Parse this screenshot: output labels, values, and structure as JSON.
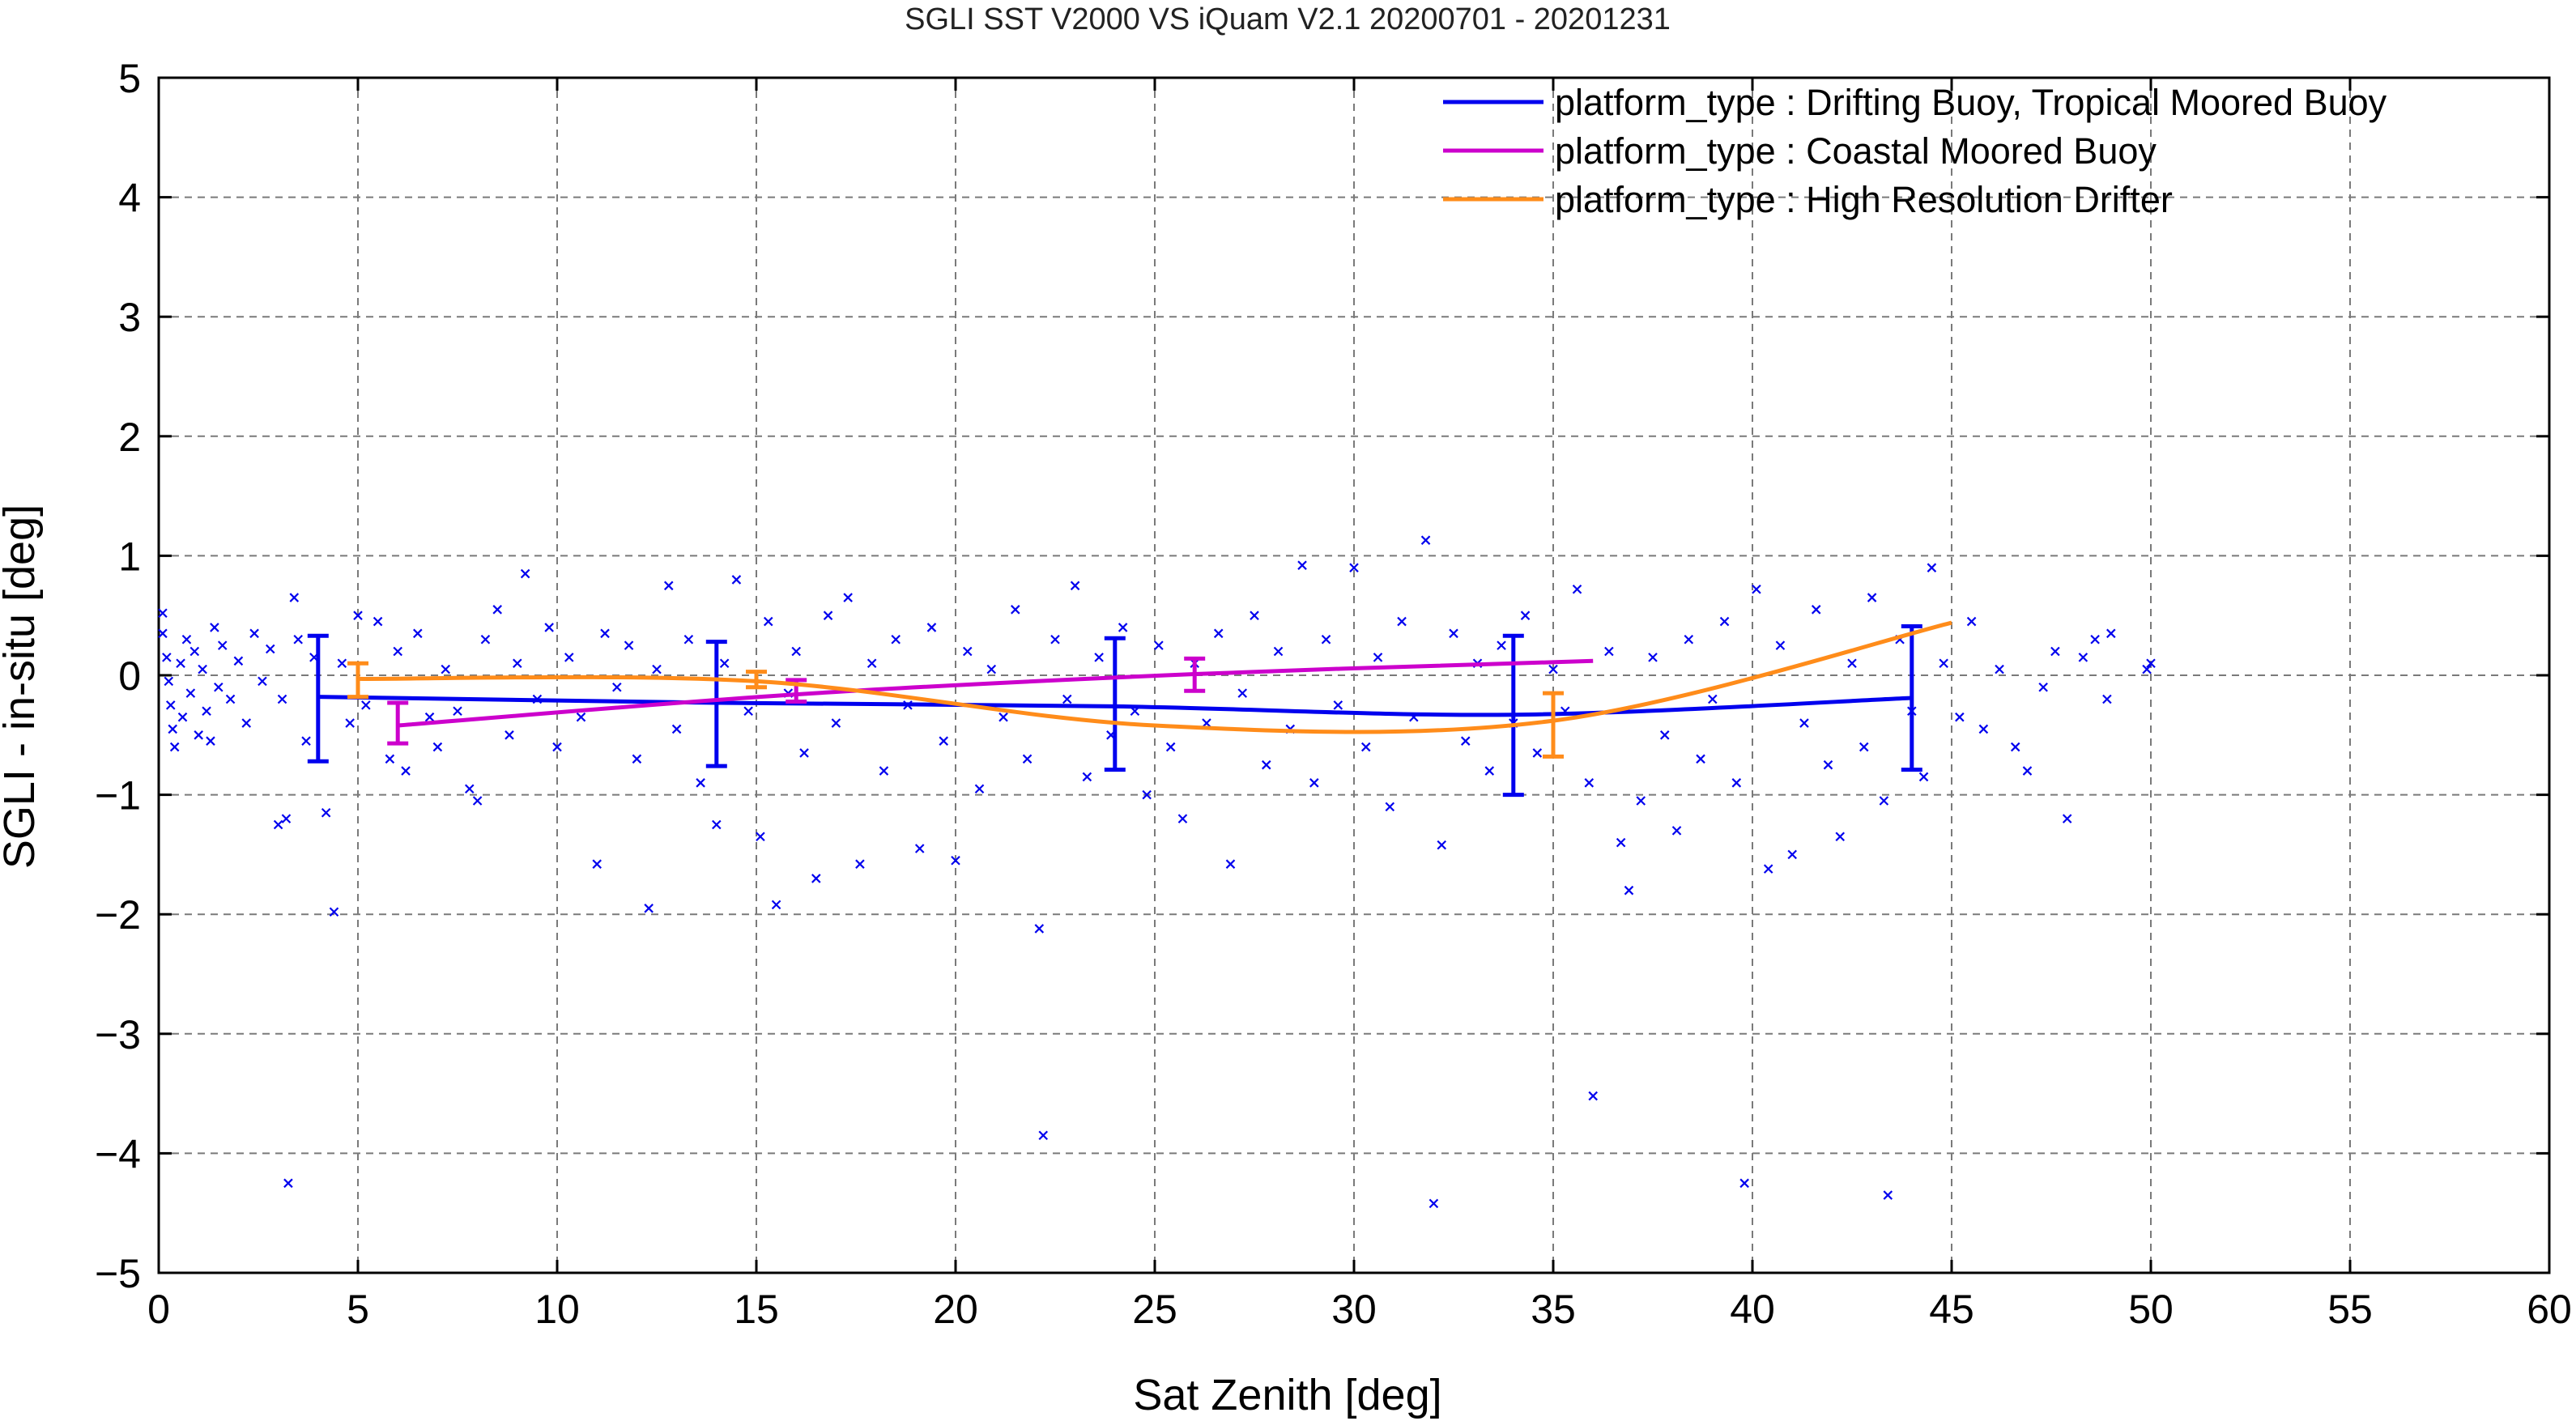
{
  "chart_data": {
    "type": "scatter",
    "title": "SGLI SST V2000 VS iQuam V2.1 20200701 - 20201231",
    "xlabel": "Sat Zenith [deg]",
    "ylabel": "SGLI - in-situ [deg]",
    "xlim": [
      0,
      60
    ],
    "ylim": [
      -5,
      5
    ],
    "x_ticks": [
      0,
      5,
      10,
      15,
      20,
      25,
      30,
      35,
      40,
      45,
      50,
      55,
      60
    ],
    "y_ticks": [
      -5,
      -4,
      -3,
      -2,
      -1,
      0,
      1,
      2,
      3,
      4,
      5
    ],
    "x_tick_labels": [
      "0",
      "5",
      "10",
      "15",
      "20",
      "25",
      "30",
      "35",
      "40",
      "45",
      "50",
      "55",
      "60"
    ],
    "y_tick_labels": [
      "−5",
      "−4",
      "−3",
      "−2",
      "−1",
      "0",
      "1",
      "2",
      "3",
      "4",
      "5"
    ],
    "grid": true,
    "grid_style": "dashed",
    "legend_position": "top-right",
    "series": [
      {
        "name": "platform_type : Drifting Buoy, Tropical Moored Buoy",
        "color": "#0000ee",
        "kind": "mean_line_with_errorbars",
        "x": [
          4,
          14,
          24,
          34,
          44
        ],
        "y": [
          -0.18,
          -0.23,
          -0.26,
          -0.33,
          -0.19
        ],
        "err_low": [
          -0.72,
          -0.76,
          -0.79,
          -1.0,
          -0.79
        ],
        "err_high": [
          0.33,
          0.28,
          0.31,
          0.33,
          0.41
        ]
      },
      {
        "name": "platform_type : Coastal Moored Buoy",
        "color": "#cc00cc",
        "kind": "mean_line_with_errorbars",
        "x": [
          6,
          16,
          26,
          36
        ],
        "y": [
          -0.42,
          -0.16,
          0.01,
          0.12
        ],
        "err_low": [
          -0.57,
          -0.22,
          -0.13,
          0.12
        ],
        "err_high": [
          -0.23,
          -0.04,
          0.14,
          0.12
        ]
      },
      {
        "name": "platform_type : High Resolution Drifter",
        "color": "#ff8c1a",
        "kind": "mean_line_with_errorbars",
        "x": [
          5,
          15,
          25,
          35,
          45
        ],
        "y": [
          -0.03,
          -0.05,
          -0.42,
          -0.38,
          0.44
        ],
        "err_low": [
          -0.18,
          -0.1,
          -0.42,
          -0.68,
          0.44
        ],
        "err_high": [
          0.1,
          0.03,
          -0.42,
          -0.15,
          0.44
        ]
      }
    ],
    "scatter_points": [
      {
        "x": 0.1,
        "y": 0.52
      },
      {
        "x": 0.1,
        "y": 0.35
      },
      {
        "x": 0.2,
        "y": 0.15
      },
      {
        "x": 0.25,
        "y": -0.05
      },
      {
        "x": 0.3,
        "y": -0.25
      },
      {
        "x": 0.35,
        "y": -0.45
      },
      {
        "x": 0.4,
        "y": -0.6
      },
      {
        "x": 0.55,
        "y": 0.1
      },
      {
        "x": 0.6,
        "y": -0.35
      },
      {
        "x": 0.7,
        "y": 0.3
      },
      {
        "x": 0.8,
        "y": -0.15
      },
      {
        "x": 0.9,
        "y": 0.2
      },
      {
        "x": 1.0,
        "y": -0.5
      },
      {
        "x": 1.1,
        "y": 0.05
      },
      {
        "x": 1.2,
        "y": -0.3
      },
      {
        "x": 1.3,
        "y": -0.55
      },
      {
        "x": 1.4,
        "y": 0.4
      },
      {
        "x": 1.5,
        "y": -0.1
      },
      {
        "x": 1.6,
        "y": 0.25
      },
      {
        "x": 1.8,
        "y": -0.2
      },
      {
        "x": 2.0,
        "y": 0.12
      },
      {
        "x": 2.2,
        "y": -0.4
      },
      {
        "x": 2.4,
        "y": 0.35
      },
      {
        "x": 2.6,
        "y": -0.05
      },
      {
        "x": 2.8,
        "y": 0.22
      },
      {
        "x": 3.0,
        "y": -1.25
      },
      {
        "x": 3.1,
        "y": -0.2
      },
      {
        "x": 3.2,
        "y": -1.2
      },
      {
        "x": 3.25,
        "y": -4.25
      },
      {
        "x": 3.4,
        "y": 0.65
      },
      {
        "x": 3.5,
        "y": 0.3
      },
      {
        "x": 3.7,
        "y": -0.55
      },
      {
        "x": 3.9,
        "y": 0.15
      },
      {
        "x": 4.2,
        "y": -1.15
      },
      {
        "x": 4.4,
        "y": -1.98
      },
      {
        "x": 4.6,
        "y": 0.1
      },
      {
        "x": 4.8,
        "y": -0.4
      },
      {
        "x": 5.0,
        "y": 0.5
      },
      {
        "x": 5.2,
        "y": -0.25
      },
      {
        "x": 5.5,
        "y": 0.45
      },
      {
        "x": 5.8,
        "y": -0.7
      },
      {
        "x": 6.0,
        "y": 0.2
      },
      {
        "x": 6.2,
        "y": -0.8
      },
      {
        "x": 6.5,
        "y": 0.35
      },
      {
        "x": 6.8,
        "y": -0.35
      },
      {
        "x": 7.0,
        "y": -0.6
      },
      {
        "x": 7.2,
        "y": 0.05
      },
      {
        "x": 7.5,
        "y": -0.3
      },
      {
        "x": 7.8,
        "y": -0.95
      },
      {
        "x": 8.0,
        "y": -1.05
      },
      {
        "x": 8.2,
        "y": 0.3
      },
      {
        "x": 8.5,
        "y": 0.55
      },
      {
        "x": 8.8,
        "y": -0.5
      },
      {
        "x": 9.0,
        "y": 0.1
      },
      {
        "x": 9.2,
        "y": 0.85
      },
      {
        "x": 9.5,
        "y": -0.2
      },
      {
        "x": 9.8,
        "y": 0.4
      },
      {
        "x": 10.0,
        "y": -0.6
      },
      {
        "x": 10.3,
        "y": 0.15
      },
      {
        "x": 10.6,
        "y": -0.35
      },
      {
        "x": 11.0,
        "y": -1.58
      },
      {
        "x": 11.2,
        "y": 0.35
      },
      {
        "x": 11.5,
        "y": -0.1
      },
      {
        "x": 11.8,
        "y": 0.25
      },
      {
        "x": 12.0,
        "y": -0.7
      },
      {
        "x": 12.3,
        "y": -1.95
      },
      {
        "x": 12.5,
        "y": 0.05
      },
      {
        "x": 12.8,
        "y": 0.75
      },
      {
        "x": 13.0,
        "y": -0.45
      },
      {
        "x": 13.3,
        "y": 0.3
      },
      {
        "x": 13.6,
        "y": -0.9
      },
      {
        "x": 14.0,
        "y": -1.25
      },
      {
        "x": 14.2,
        "y": 0.1
      },
      {
        "x": 14.5,
        "y": 0.8
      },
      {
        "x": 14.8,
        "y": -0.3
      },
      {
        "x": 15.1,
        "y": -1.35
      },
      {
        "x": 15.3,
        "y": 0.45
      },
      {
        "x": 15.5,
        "y": -1.92
      },
      {
        "x": 15.8,
        "y": -0.15
      },
      {
        "x": 16.0,
        "y": 0.2
      },
      {
        "x": 16.2,
        "y": -0.65
      },
      {
        "x": 16.5,
        "y": -1.7
      },
      {
        "x": 16.8,
        "y": 0.5
      },
      {
        "x": 17.0,
        "y": -0.4
      },
      {
        "x": 17.3,
        "y": 0.65
      },
      {
        "x": 17.6,
        "y": -1.58
      },
      {
        "x": 17.9,
        "y": 0.1
      },
      {
        "x": 18.2,
        "y": -0.8
      },
      {
        "x": 18.5,
        "y": 0.3
      },
      {
        "x": 18.8,
        "y": -0.25
      },
      {
        "x": 19.1,
        "y": -1.45
      },
      {
        "x": 19.4,
        "y": 0.4
      },
      {
        "x": 19.7,
        "y": -0.55
      },
      {
        "x": 20.0,
        "y": -1.55
      },
      {
        "x": 20.3,
        "y": 0.2
      },
      {
        "x": 20.6,
        "y": -0.95
      },
      {
        "x": 20.9,
        "y": 0.05
      },
      {
        "x": 21.2,
        "y": -0.35
      },
      {
        "x": 21.5,
        "y": 0.55
      },
      {
        "x": 21.8,
        "y": -0.7
      },
      {
        "x": 22.1,
        "y": -2.12
      },
      {
        "x": 22.2,
        "y": -3.85
      },
      {
        "x": 22.5,
        "y": 0.3
      },
      {
        "x": 22.8,
        "y": -0.2
      },
      {
        "x": 23.0,
        "y": 0.75
      },
      {
        "x": 23.3,
        "y": -0.85
      },
      {
        "x": 23.6,
        "y": 0.15
      },
      {
        "x": 23.9,
        "y": -0.5
      },
      {
        "x": 24.2,
        "y": 0.4
      },
      {
        "x": 24.5,
        "y": -0.3
      },
      {
        "x": 24.8,
        "y": -1.0
      },
      {
        "x": 25.1,
        "y": 0.25
      },
      {
        "x": 25.4,
        "y": -0.6
      },
      {
        "x": 25.7,
        "y": -1.2
      },
      {
        "x": 26.0,
        "y": 0.1
      },
      {
        "x": 26.3,
        "y": -0.4
      },
      {
        "x": 26.6,
        "y": 0.35
      },
      {
        "x": 26.9,
        "y": -1.58
      },
      {
        "x": 27.2,
        "y": -0.15
      },
      {
        "x": 27.5,
        "y": 0.5
      },
      {
        "x": 27.8,
        "y": -0.75
      },
      {
        "x": 28.1,
        "y": 0.2
      },
      {
        "x": 28.4,
        "y": -0.45
      },
      {
        "x": 28.7,
        "y": 0.92
      },
      {
        "x": 29.0,
        "y": -0.9
      },
      {
        "x": 29.3,
        "y": 0.3
      },
      {
        "x": 29.6,
        "y": -0.25
      },
      {
        "x": 30.0,
        "y": 0.9
      },
      {
        "x": 30.3,
        "y": -0.6
      },
      {
        "x": 30.6,
        "y": 0.15
      },
      {
        "x": 30.9,
        "y": -1.1
      },
      {
        "x": 31.2,
        "y": 0.45
      },
      {
        "x": 31.5,
        "y": -0.35
      },
      {
        "x": 31.8,
        "y": 1.13
      },
      {
        "x": 32.0,
        "y": -4.42
      },
      {
        "x": 32.2,
        "y": -1.42
      },
      {
        "x": 32.5,
        "y": 0.35
      },
      {
        "x": 32.8,
        "y": -0.55
      },
      {
        "x": 33.1,
        "y": 0.1
      },
      {
        "x": 33.4,
        "y": -0.8
      },
      {
        "x": 33.7,
        "y": 0.25
      },
      {
        "x": 34.0,
        "y": -0.4
      },
      {
        "x": 34.3,
        "y": 0.5
      },
      {
        "x": 34.6,
        "y": -0.65
      },
      {
        "x": 35.0,
        "y": 0.05
      },
      {
        "x": 35.3,
        "y": -0.3
      },
      {
        "x": 35.6,
        "y": 0.72
      },
      {
        "x": 35.9,
        "y": -0.9
      },
      {
        "x": 36.0,
        "y": -3.52
      },
      {
        "x": 36.4,
        "y": 0.2
      },
      {
        "x": 36.7,
        "y": -1.4
      },
      {
        "x": 36.9,
        "y": -1.8
      },
      {
        "x": 37.2,
        "y": -1.05
      },
      {
        "x": 37.5,
        "y": 0.15
      },
      {
        "x": 37.8,
        "y": -0.5
      },
      {
        "x": 38.1,
        "y": -1.3
      },
      {
        "x": 38.4,
        "y": 0.3
      },
      {
        "x": 38.7,
        "y": -0.7
      },
      {
        "x": 39.0,
        "y": -0.2
      },
      {
        "x": 39.3,
        "y": 0.45
      },
      {
        "x": 39.6,
        "y": -0.9
      },
      {
        "x": 39.8,
        "y": -4.25
      },
      {
        "x": 40.1,
        "y": 0.72
      },
      {
        "x": 40.4,
        "y": -1.62
      },
      {
        "x": 40.7,
        "y": 0.25
      },
      {
        "x": 41.0,
        "y": -1.5
      },
      {
        "x": 41.3,
        "y": -0.4
      },
      {
        "x": 41.6,
        "y": 0.55
      },
      {
        "x": 41.9,
        "y": -0.75
      },
      {
        "x": 42.2,
        "y": -1.35
      },
      {
        "x": 42.5,
        "y": 0.1
      },
      {
        "x": 42.8,
        "y": -0.6
      },
      {
        "x": 43.0,
        "y": 0.65
      },
      {
        "x": 43.3,
        "y": -1.05
      },
      {
        "x": 43.4,
        "y": -4.35
      },
      {
        "x": 43.7,
        "y": 0.3
      },
      {
        "x": 44.0,
        "y": -0.3
      },
      {
        "x": 44.3,
        "y": -0.85
      },
      {
        "x": 44.5,
        "y": 0.9
      },
      {
        "x": 44.8,
        "y": 0.1
      },
      {
        "x": 45.2,
        "y": -0.35
      },
      {
        "x": 45.5,
        "y": 0.45
      },
      {
        "x": 45.8,
        "y": -0.45
      },
      {
        "x": 46.2,
        "y": 0.05
      },
      {
        "x": 46.6,
        "y": -0.6
      },
      {
        "x": 46.9,
        "y": -0.8
      },
      {
        "x": 47.3,
        "y": -0.1
      },
      {
        "x": 47.6,
        "y": 0.2
      },
      {
        "x": 47.9,
        "y": -1.2
      },
      {
        "x": 48.3,
        "y": 0.15
      },
      {
        "x": 48.6,
        "y": 0.3
      },
      {
        "x": 48.9,
        "y": -0.2
      },
      {
        "x": 49.0,
        "y": 0.35
      },
      {
        "x": 49.9,
        "y": 0.05
      },
      {
        "x": 50.0,
        "y": 0.1
      }
    ]
  }
}
